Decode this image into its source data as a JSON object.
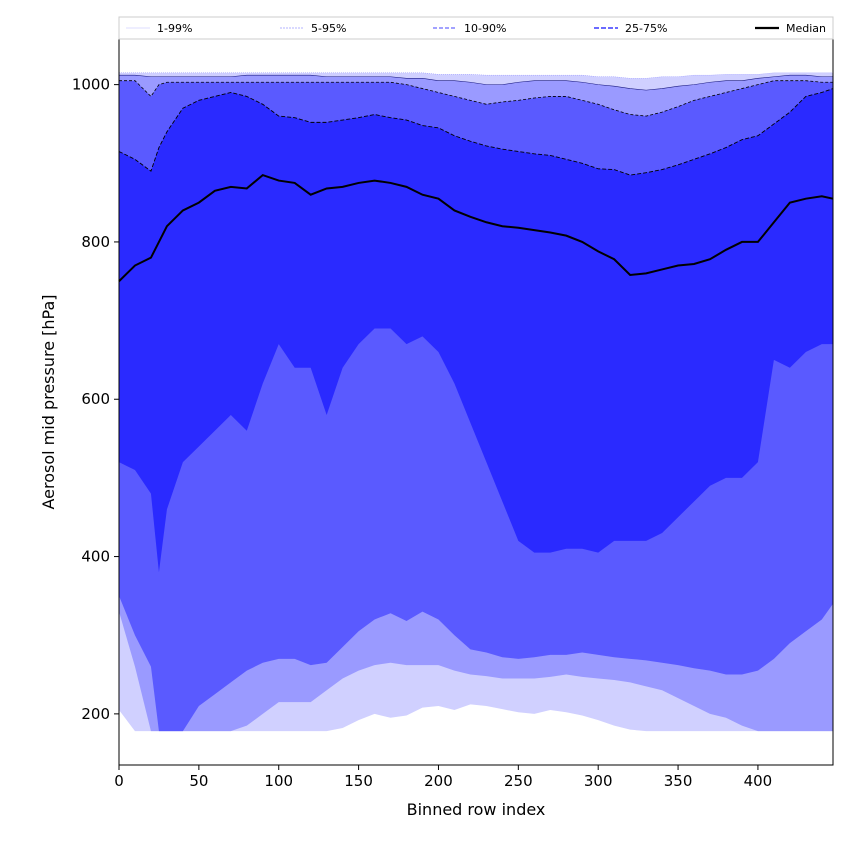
{
  "chart_data": {
    "type": "area",
    "xlabel": "Binned row index",
    "ylabel": "Aerosol mid pressure [hPa]",
    "xlim": [
      0,
      447
    ],
    "ylim": [
      135,
      1058
    ],
    "xticks": [
      0,
      50,
      100,
      150,
      200,
      250,
      300,
      350,
      400
    ],
    "yticks": [
      200,
      400,
      600,
      800,
      1000
    ],
    "grid": false,
    "legend_position": "top (horizontal strip above plot)",
    "legend": [
      "1-99%",
      "5-95%",
      "10-90%",
      "25-75%",
      "Median"
    ],
    "colors": {
      "band_1_99": "#d0d0ff",
      "band_5_95": "#9a9aff",
      "band_10_90": "#5a5aff",
      "band_25_75": "#2a2aff",
      "median": "#000000"
    },
    "x": [
      0,
      10,
      20,
      25,
      30,
      40,
      50,
      60,
      70,
      80,
      90,
      100,
      110,
      120,
      130,
      140,
      150,
      160,
      170,
      180,
      190,
      200,
      210,
      220,
      230,
      240,
      250,
      260,
      270,
      280,
      290,
      300,
      310,
      320,
      330,
      340,
      350,
      360,
      370,
      380,
      390,
      400,
      410,
      420,
      430,
      440,
      447
    ],
    "series": [
      {
        "name": "1%",
        "values": [
          205,
          178,
          178,
          178,
          178,
          178,
          178,
          178,
          178,
          178,
          178,
          178,
          178,
          178,
          178,
          182,
          192,
          200,
          195,
          198,
          208,
          210,
          205,
          212,
          210,
          206,
          202,
          200,
          205,
          202,
          198,
          192,
          185,
          180,
          178,
          178,
          178,
          178,
          178,
          178,
          178,
          178,
          178,
          178,
          178,
          178,
          178
        ]
      },
      {
        "name": "5%",
        "values": [
          330,
          260,
          178,
          178,
          178,
          178,
          178,
          178,
          178,
          185,
          200,
          215,
          215,
          215,
          230,
          245,
          255,
          262,
          265,
          262,
          262,
          262,
          255,
          250,
          248,
          245,
          245,
          245,
          247,
          250,
          247,
          245,
          243,
          240,
          235,
          230,
          220,
          210,
          200,
          195,
          185,
          178,
          178,
          178,
          178,
          178,
          178
        ]
      },
      {
        "name": "10%",
        "values": [
          350,
          300,
          260,
          178,
          178,
          178,
          210,
          225,
          240,
          255,
          265,
          270,
          270,
          262,
          265,
          285,
          305,
          320,
          328,
          318,
          330,
          320,
          300,
          282,
          278,
          272,
          270,
          272,
          275,
          275,
          278,
          275,
          272,
          270,
          268,
          265,
          262,
          258,
          255,
          250,
          250,
          255,
          270,
          290,
          305,
          320,
          340
        ]
      },
      {
        "name": "25%",
        "values": [
          520,
          510,
          480,
          380,
          460,
          520,
          540,
          560,
          580,
          560,
          620,
          670,
          640,
          640,
          580,
          640,
          670,
          690,
          690,
          670,
          680,
          660,
          620,
          570,
          520,
          470,
          420,
          405,
          405,
          410,
          410,
          405,
          420,
          420,
          420,
          430,
          450,
          470,
          490,
          500,
          500,
          520,
          650,
          640,
          660,
          670,
          670
        ]
      },
      {
        "name": "Median",
        "values": [
          750,
          770,
          780,
          800,
          820,
          840,
          850,
          865,
          870,
          868,
          885,
          878,
          875,
          860,
          868,
          870,
          875,
          878,
          875,
          870,
          860,
          855,
          840,
          832,
          825,
          820,
          818,
          815,
          812,
          808,
          800,
          788,
          778,
          758,
          760,
          765,
          770,
          772,
          778,
          790,
          800,
          800,
          825,
          850,
          855,
          858,
          855
        ]
      },
      {
        "name": "75%",
        "values": [
          915,
          905,
          890,
          920,
          940,
          970,
          980,
          985,
          990,
          985,
          975,
          960,
          958,
          952,
          952,
          955,
          958,
          962,
          958,
          955,
          948,
          945,
          935,
          928,
          922,
          918,
          915,
          912,
          910,
          905,
          900,
          893,
          892,
          885,
          888,
          892,
          898,
          905,
          912,
          920,
          930,
          935,
          950,
          965,
          985,
          990,
          995
        ]
      },
      {
        "name": "90%",
        "values": [
          1005,
          1005,
          985,
          1000,
          1003,
          1003,
          1003,
          1003,
          1003,
          1003,
          1003,
          1003,
          1003,
          1003,
          1003,
          1003,
          1003,
          1003,
          1003,
          1000,
          995,
          990,
          985,
          980,
          975,
          978,
          980,
          983,
          985,
          985,
          980,
          975,
          968,
          962,
          960,
          965,
          972,
          980,
          985,
          990,
          995,
          1000,
          1005,
          1005,
          1005,
          1003,
          1003
        ]
      },
      {
        "name": "95%",
        "values": [
          1012,
          1012,
          1010,
          1010,
          1010,
          1010,
          1010,
          1010,
          1010,
          1012,
          1012,
          1012,
          1012,
          1012,
          1010,
          1010,
          1010,
          1010,
          1010,
          1008,
          1008,
          1005,
          1005,
          1003,
          1000,
          1000,
          1003,
          1005,
          1005,
          1005,
          1003,
          1000,
          998,
          995,
          993,
          995,
          998,
          1000,
          1003,
          1005,
          1005,
          1008,
          1010,
          1012,
          1012,
          1010,
          1010
        ]
      },
      {
        "name": "99%",
        "values": [
          1015,
          1015,
          1015,
          1015,
          1015,
          1015,
          1015,
          1015,
          1015,
          1015,
          1015,
          1015,
          1015,
          1015,
          1015,
          1015,
          1015,
          1015,
          1015,
          1015,
          1015,
          1013,
          1013,
          1013,
          1012,
          1012,
          1012,
          1012,
          1012,
          1012,
          1012,
          1010,
          1010,
          1008,
          1008,
          1010,
          1010,
          1012,
          1012,
          1013,
          1013,
          1013,
          1015,
          1015,
          1015,
          1015,
          1015
        ]
      }
    ]
  }
}
